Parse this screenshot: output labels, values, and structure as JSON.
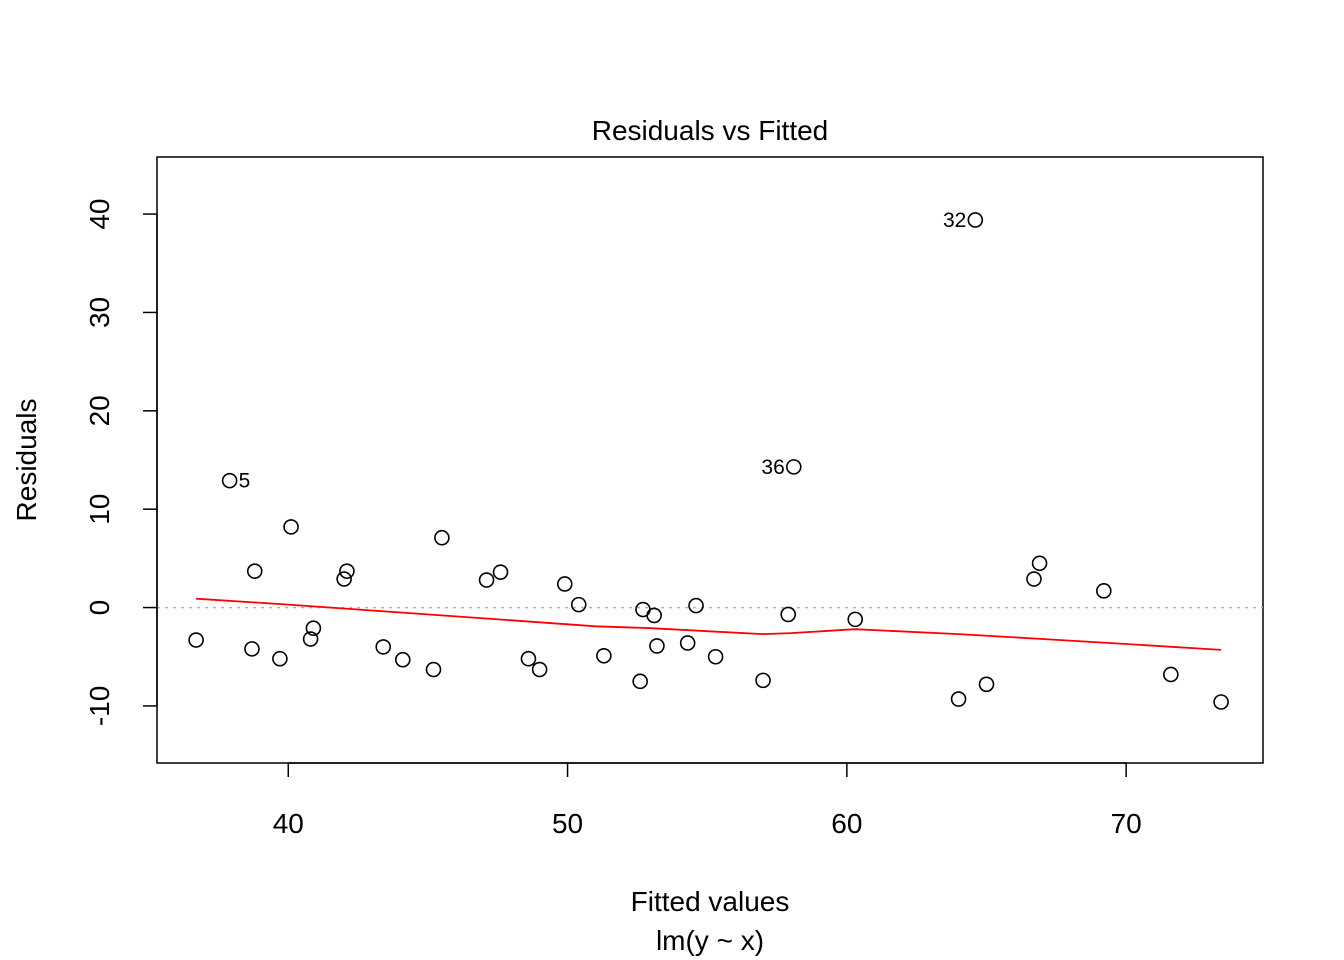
{
  "chart_data": {
    "type": "scatter",
    "title": "Residuals vs Fitted",
    "xlabel": "Fitted values",
    "sublabel": "lm(y ~ x)",
    "ylabel": "Residuals",
    "xlim": [
      35.3,
      74.9
    ],
    "ylim": [
      -15.8,
      45.8
    ],
    "xticks": [
      40,
      50,
      60,
      70
    ],
    "yticks": [
      -10,
      0,
      10,
      20,
      30,
      40
    ],
    "xtick_labels": [
      "40",
      "50",
      "60",
      "70"
    ],
    "ytick_labels": [
      "-10",
      "0",
      "10",
      "20",
      "30",
      "40"
    ],
    "grid": false,
    "zero_line": true,
    "colors": {
      "points": "#000000",
      "smooth": "#ff0000",
      "zero_line": "#b3b3b3"
    },
    "points": [
      {
        "x": 36.7,
        "y": -3.3
      },
      {
        "x": 37.9,
        "y": 12.9,
        "label": "5"
      },
      {
        "x": 38.7,
        "y": -4.2
      },
      {
        "x": 38.8,
        "y": 3.7
      },
      {
        "x": 39.7,
        "y": -5.2
      },
      {
        "x": 40.1,
        "y": 8.2
      },
      {
        "x": 40.8,
        "y": -3.2
      },
      {
        "x": 40.9,
        "y": -2.1
      },
      {
        "x": 42.0,
        "y": 2.9
      },
      {
        "x": 42.1,
        "y": 3.7
      },
      {
        "x": 43.4,
        "y": -4.0
      },
      {
        "x": 44.1,
        "y": -5.3
      },
      {
        "x": 45.2,
        "y": -6.3
      },
      {
        "x": 45.5,
        "y": 7.1
      },
      {
        "x": 47.1,
        "y": 2.8
      },
      {
        "x": 47.6,
        "y": 3.6
      },
      {
        "x": 48.6,
        "y": -5.2
      },
      {
        "x": 49.0,
        "y": -6.3
      },
      {
        "x": 49.9,
        "y": 2.4
      },
      {
        "x": 50.4,
        "y": 0.3
      },
      {
        "x": 51.3,
        "y": -4.9
      },
      {
        "x": 52.6,
        "y": -7.5
      },
      {
        "x": 52.7,
        "y": -0.2
      },
      {
        "x": 53.1,
        "y": -0.8
      },
      {
        "x": 53.2,
        "y": -3.9
      },
      {
        "x": 54.3,
        "y": -3.6
      },
      {
        "x": 54.6,
        "y": 0.2
      },
      {
        "x": 55.3,
        "y": -5.0
      },
      {
        "x": 57.0,
        "y": -7.4
      },
      {
        "x": 57.9,
        "y": -0.7
      },
      {
        "x": 58.1,
        "y": 14.3,
        "label": "36"
      },
      {
        "x": 60.3,
        "y": -1.2
      },
      {
        "x": 64.0,
        "y": -9.3
      },
      {
        "x": 64.6,
        "y": 39.4,
        "label": "32"
      },
      {
        "x": 65.0,
        "y": -7.8
      },
      {
        "x": 66.7,
        "y": 2.9
      },
      {
        "x": 66.9,
        "y": 4.5
      },
      {
        "x": 69.2,
        "y": 1.7
      },
      {
        "x": 71.6,
        "y": -6.8
      },
      {
        "x": 73.4,
        "y": -9.6
      }
    ],
    "smooth_line": [
      {
        "x": 36.7,
        "y": 0.9
      },
      {
        "x": 40.0,
        "y": 0.3
      },
      {
        "x": 43.0,
        "y": -0.3
      },
      {
        "x": 46.0,
        "y": -0.9
      },
      {
        "x": 49.0,
        "y": -1.5
      },
      {
        "x": 51.0,
        "y": -1.9
      },
      {
        "x": 53.0,
        "y": -2.1
      },
      {
        "x": 55.0,
        "y": -2.4
      },
      {
        "x": 57.0,
        "y": -2.7
      },
      {
        "x": 58.0,
        "y": -2.6
      },
      {
        "x": 60.3,
        "y": -2.2
      },
      {
        "x": 64.0,
        "y": -2.7
      },
      {
        "x": 67.0,
        "y": -3.2
      },
      {
        "x": 70.0,
        "y": -3.7
      },
      {
        "x": 73.4,
        "y": -4.3
      }
    ]
  }
}
